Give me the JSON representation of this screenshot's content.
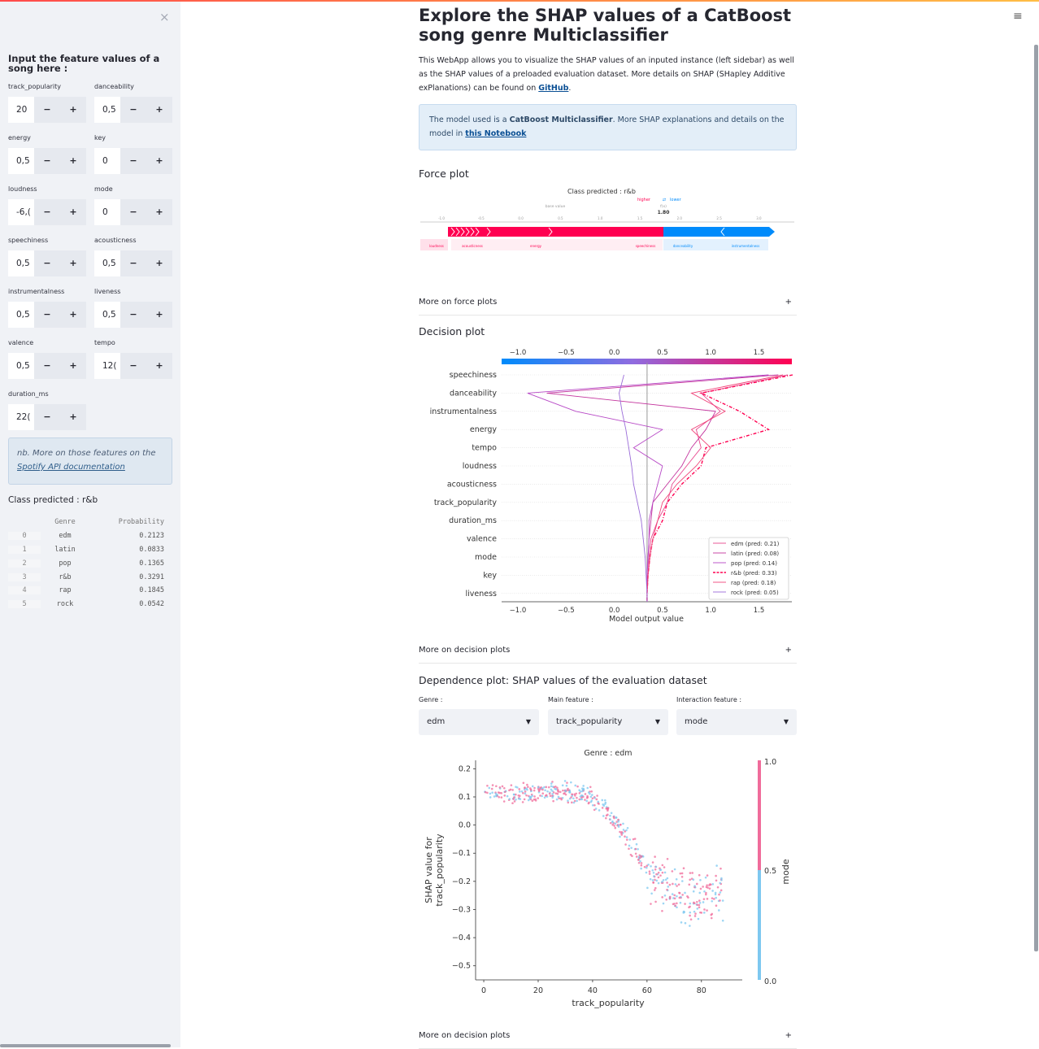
{
  "sidebar": {
    "close_icon": "×",
    "heading": "Input the feature values of a song here :",
    "inputs": [
      {
        "label": "track_popularity",
        "value": "20"
      },
      {
        "label": "danceability",
        "value": "0,5"
      },
      {
        "label": "energy",
        "value": "0,5"
      },
      {
        "label": "key",
        "value": "0"
      },
      {
        "label": "loudness",
        "value": "-6,("
      },
      {
        "label": "mode",
        "value": "0"
      },
      {
        "label": "speechiness",
        "value": "0,5"
      },
      {
        "label": "acousticness",
        "value": "0,5"
      },
      {
        "label": "instrumentalness",
        "value": "0,5"
      },
      {
        "label": "liveness",
        "value": "0,5"
      },
      {
        "label": "valence",
        "value": "0,5"
      },
      {
        "label": "tempo",
        "value": "12("
      },
      {
        "label": "duration_ms",
        "value": "22("
      }
    ],
    "minus": "−",
    "plus": "+",
    "info_prefix": "nb. More on those features on the ",
    "info_link": "Spotify API documentation",
    "class_predicted": "Class predicted : r&b",
    "table": {
      "headers": [
        "Genre",
        "Probability"
      ],
      "rows": [
        {
          "idx": "0",
          "genre": "edm",
          "prob": "0.2123"
        },
        {
          "idx": "1",
          "genre": "latin",
          "prob": "0.0833"
        },
        {
          "idx": "2",
          "genre": "pop",
          "prob": "0.1365"
        },
        {
          "idx": "3",
          "genre": "r&b",
          "prob": "0.3291"
        },
        {
          "idx": "4",
          "genre": "rap",
          "prob": "0.1845"
        },
        {
          "idx": "5",
          "genre": "rock",
          "prob": "0.0542"
        }
      ]
    }
  },
  "main": {
    "menu_icon": "≡",
    "title": "Explore the SHAP values of a CatBoost song genre Multiclassifier",
    "intro_text": "This WebApp allows you to visualize the SHAP values of an inputed instance (left sidebar) as well as the SHAP values of a preloaded evaluation dataset. More details on SHAP (SHapley Additive exPlanations) can be found on ",
    "intro_link": "GitHub",
    "intro_end": ".",
    "info_prefix": "The model used is a ",
    "info_bold": "CatBoost Multiclassifier",
    "info_mid": ". More SHAP explanations and details on the model in ",
    "info_link": "this Notebook",
    "force_title": "Force plot",
    "expander_force": "More on force plots",
    "decision_title": "Decision plot",
    "expander_decision": "More on decision plots",
    "dependence_title": "Dependence plot: SHAP values of the evaluation dataset",
    "genre_label": "Genre :",
    "genre_value": "edm",
    "main_feature_label": "Main feature :",
    "main_feature_value": "track_popularity",
    "interaction_label": "Interaction feature :",
    "interaction_value": "mode",
    "expander_bottom": "More on decision plots",
    "expander_icon": "+"
  },
  "force_plot": {
    "title": "Class predicted : r&b",
    "higher": "higher",
    "lower": "lower",
    "base_value_label": "base value",
    "fx_label": "f(x)",
    "fx_value": "1.80",
    "ticks": [
      "-1.0",
      "-0.5",
      "0.0",
      "0.5",
      "1.0",
      "1.5",
      "2.0",
      "2.5",
      "3.0"
    ],
    "features": [
      "loudness",
      "acousticness",
      "energy",
      "speechiness",
      "danceability",
      "instrumentalness"
    ],
    "colors": {
      "positive": "#ff0051",
      "negative": "#008bfb"
    }
  },
  "decision_plot": {
    "features": [
      "speechiness",
      "danceability",
      "instrumentalness",
      "energy",
      "tempo",
      "loudness",
      "acousticness",
      "track_popularity",
      "duration_ms",
      "valence",
      "mode",
      "key",
      "liveness"
    ],
    "ticks": [
      "−1.0",
      "−0.5",
      "0.0",
      "0.5",
      "1.0",
      "1.5"
    ],
    "xlabel": "Model output value",
    "legend": [
      "edm (pred: 0.21)",
      "latin (pred: 0.08)",
      "pop (pred: 0.14)",
      "r&b (pred: 0.33)",
      "rap (pred: 0.18)",
      "rock (pred: 0.05)"
    ]
  },
  "chart_data": {
    "type": "scatter",
    "title": "Genre : edm",
    "xlabel": "track_popularity",
    "ylabel": "SHAP value for\ntrack_popularity",
    "xlim": [
      -3,
      95
    ],
    "ylim": [
      -0.55,
      0.23
    ],
    "xticks": [
      "0",
      "20",
      "40",
      "60",
      "80"
    ],
    "yticks": [
      "0.2",
      "0.1",
      "0.0",
      "−0.1",
      "−0.2",
      "−0.3",
      "−0.4",
      "−0.5"
    ],
    "colorbar": {
      "label": "mode",
      "min": "0.0",
      "mid": "0.5",
      "max": "1.0",
      "low_color": "#7ec8f0",
      "high_color": "#f06c9b"
    },
    "trend": [
      [
        0,
        0.12
      ],
      [
        10,
        0.11
      ],
      [
        20,
        0.12
      ],
      [
        30,
        0.12
      ],
      [
        40,
        0.1
      ],
      [
        45,
        0.06
      ],
      [
        50,
        -0.01
      ],
      [
        55,
        -0.08
      ],
      [
        60,
        -0.15
      ],
      [
        65,
        -0.2
      ],
      [
        70,
        -0.24
      ],
      [
        75,
        -0.26
      ],
      [
        80,
        -0.25
      ],
      [
        85,
        -0.24
      ],
      [
        90,
        -0.22
      ]
    ]
  }
}
